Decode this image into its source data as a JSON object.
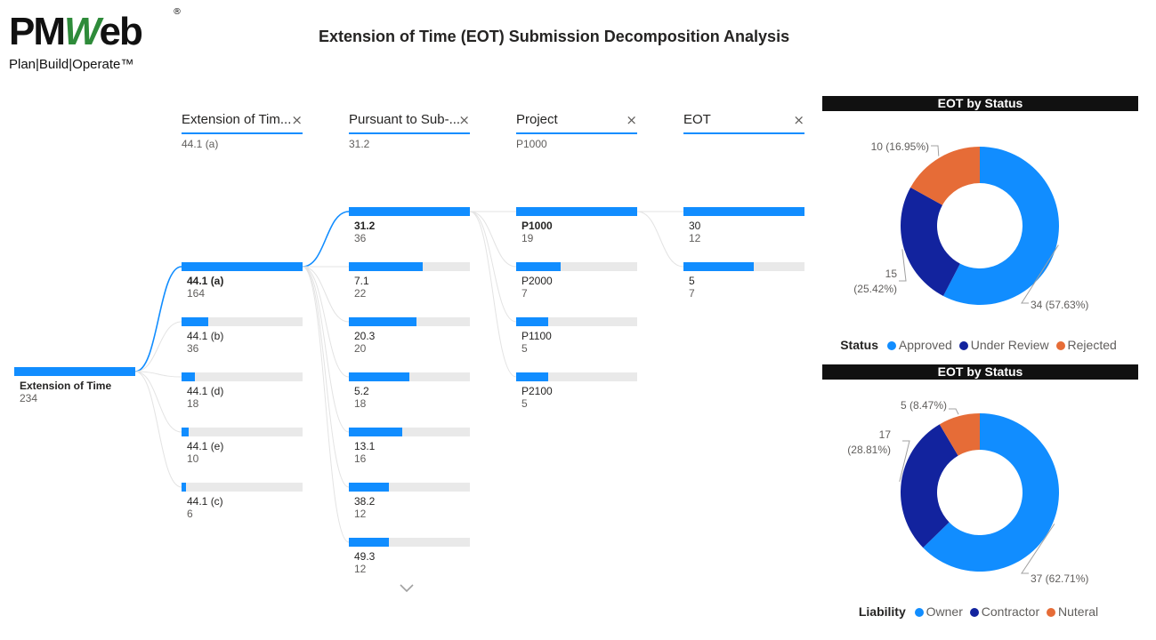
{
  "logo": {
    "brand_left": "PM",
    "brand_mid": "W",
    "brand_right": "eb",
    "registered": "®",
    "tagline": "Plan|Build|Operate™"
  },
  "title": "Extension of Time (EOT) Submission Decomposition Analysis",
  "tree": {
    "close_icon": "×",
    "columns": [
      {
        "header": "Extension of Tim...",
        "selected": "44.1 (a)"
      },
      {
        "header": "Pursuant to Sub-...",
        "selected": "31.2"
      },
      {
        "header": "Project",
        "selected": "P1000"
      },
      {
        "header": "EOT",
        "selected": ""
      }
    ],
    "root": {
      "label": "Extension of Time",
      "value": 234
    },
    "levels": [
      [
        {
          "label": "44.1 (a)",
          "value": 164
        },
        {
          "label": "44.1 (b)",
          "value": 36
        },
        {
          "label": "44.1 (d)",
          "value": 18
        },
        {
          "label": "44.1 (e)",
          "value": 10
        },
        {
          "label": "44.1 (c)",
          "value": 6
        }
      ],
      [
        {
          "label": "31.2",
          "value": 36
        },
        {
          "label": "7.1",
          "value": 22
        },
        {
          "label": "20.3",
          "value": 20
        },
        {
          "label": "5.2",
          "value": 18
        },
        {
          "label": "13.1",
          "value": 16
        },
        {
          "label": "38.2",
          "value": 12
        },
        {
          "label": "49.3",
          "value": 12
        }
      ],
      [
        {
          "label": "P1000",
          "value": 19
        },
        {
          "label": "P2000",
          "value": 7
        },
        {
          "label": "P1100",
          "value": 5
        },
        {
          "label": "P2100",
          "value": 5
        }
      ],
      [
        {
          "label": "30",
          "value": 12
        },
        {
          "label": "5",
          "value": 7
        }
      ]
    ],
    "expand_icon": "chevron-down-icon"
  },
  "charts": [
    {
      "title": "EOT by Status",
      "legend_title": "Status",
      "slices": [
        {
          "name": "Approved",
          "value": 34,
          "label": "34 (57.63%)",
          "color": "#118dff"
        },
        {
          "name": "Under Review",
          "value": 15,
          "label_line1": "15",
          "label_line2": "(25.42%)",
          "color": "#12239e"
        },
        {
          "name": "Rejected",
          "value": 10,
          "label": "10 (16.95%)",
          "color": "#e66c37"
        }
      ]
    },
    {
      "title": "EOT by Status",
      "legend_title": "Liability",
      "slices": [
        {
          "name": "Owner",
          "value": 37,
          "label": "37 (62.71%)",
          "color": "#118dff"
        },
        {
          "name": "Contractor",
          "value": 17,
          "label_line1": "17",
          "label_line2": "(28.81%)",
          "color": "#12239e"
        },
        {
          "name": "Nuteral",
          "value": 5,
          "label": "5 (8.47%)",
          "color": "#e66c37"
        }
      ]
    }
  ]
}
